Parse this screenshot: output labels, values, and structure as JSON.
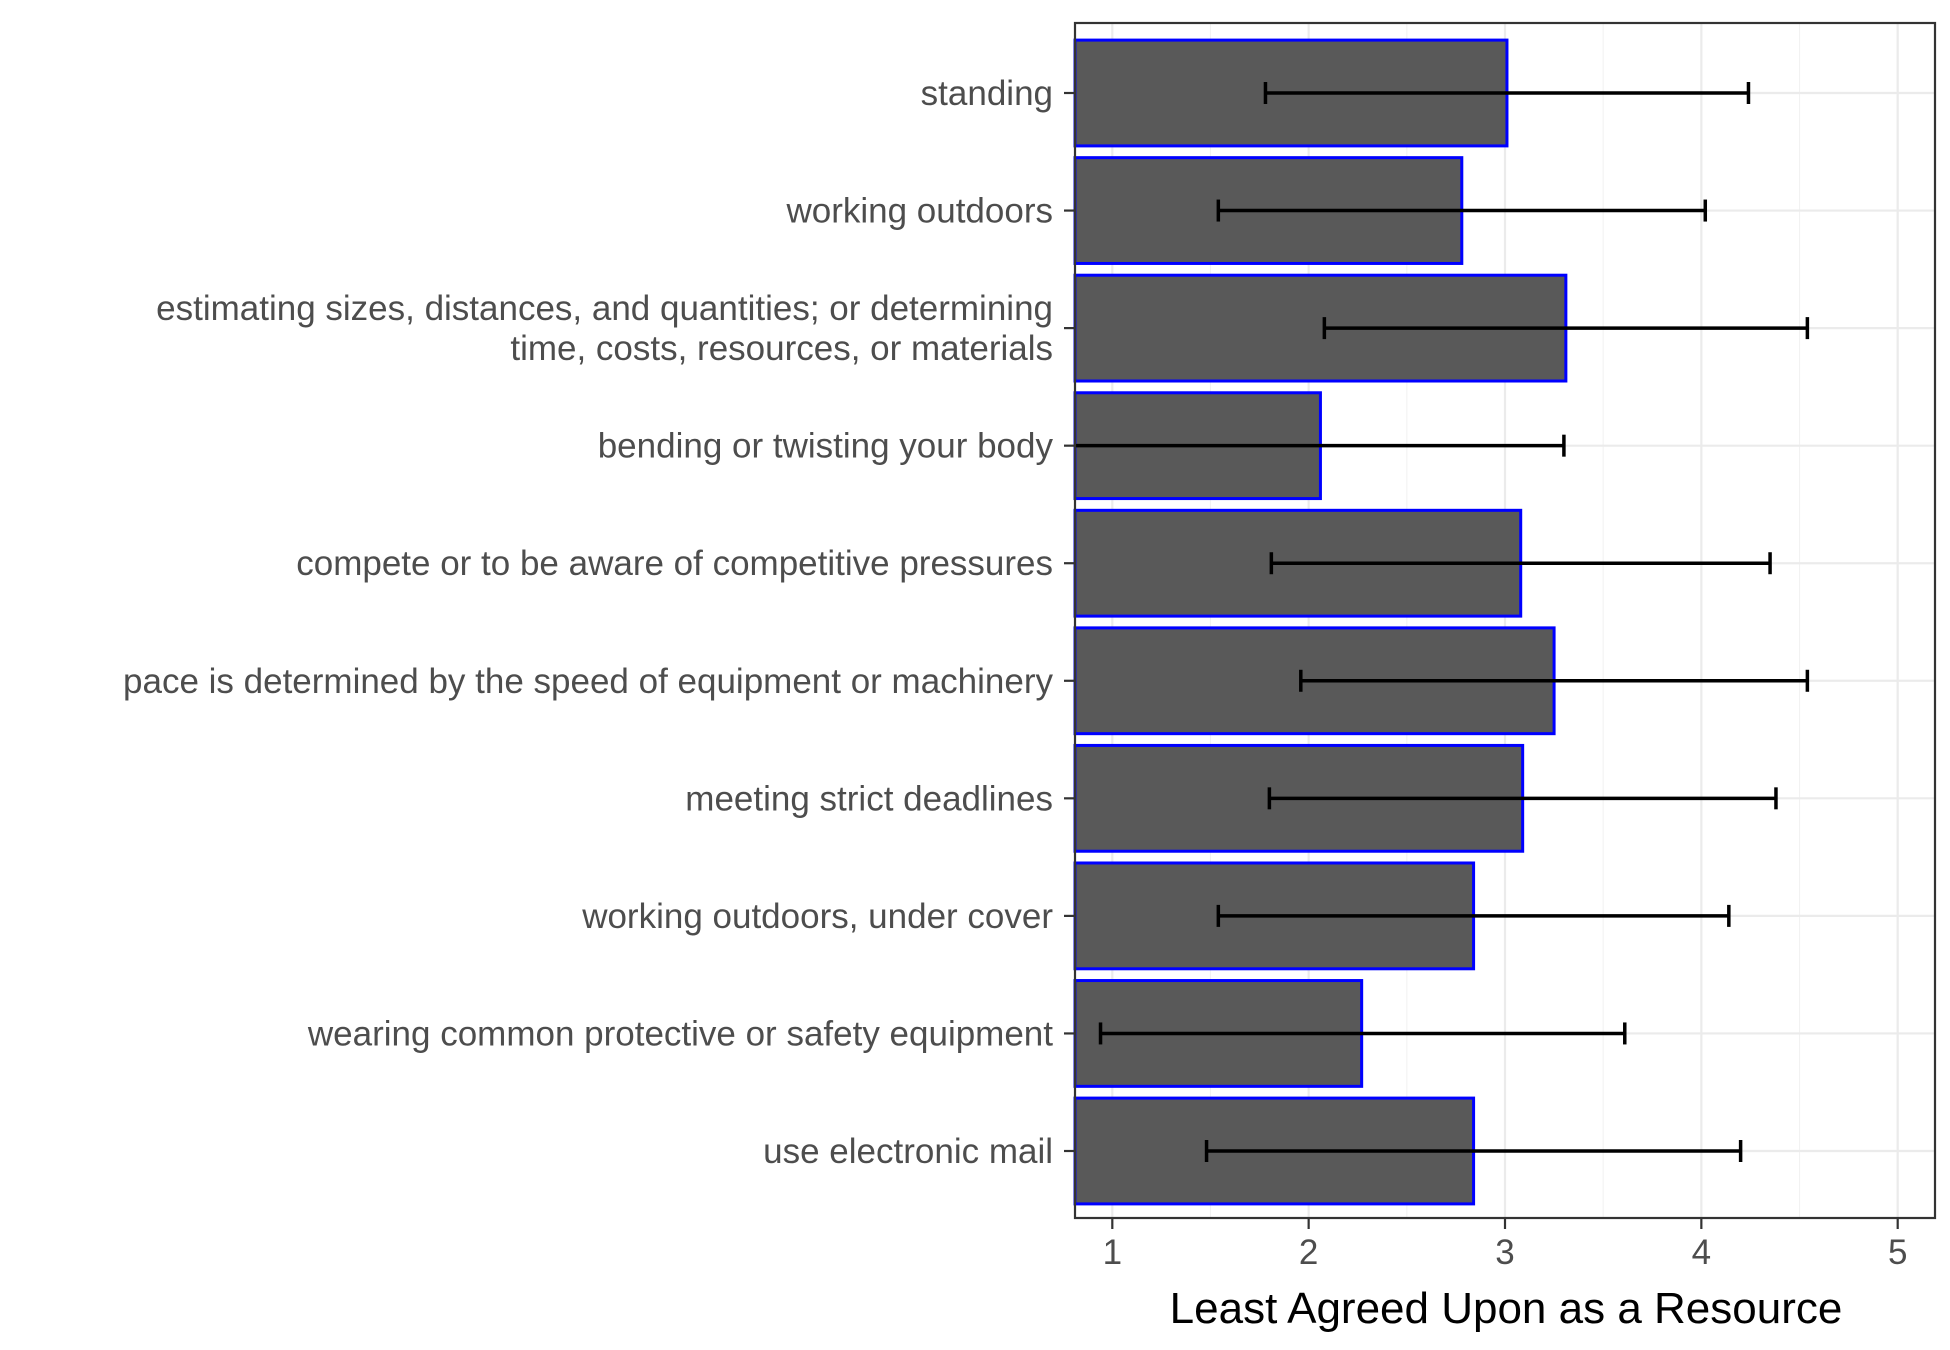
{
  "chart_data": {
    "type": "bar",
    "orientation": "horizontal",
    "title": "",
    "xlabel": "Least Agreed Upon as a Resource",
    "ylabel": "",
    "xlim": [
      0.81,
      5.19
    ],
    "x_ticks": [
      1,
      2,
      3,
      4,
      5
    ],
    "x_tick_labels": [
      "1",
      "2",
      "3",
      "4",
      "5"
    ],
    "grid": true,
    "legend": "none",
    "colors": {
      "bar_fill": "#595959",
      "bar_outline": "#0000ff",
      "error_bar": "#000000"
    },
    "categories": [
      [
        "standing"
      ],
      [
        "working outdoors"
      ],
      [
        "estimating sizes, distances, and quantities; or determining",
        "time, costs, resources, or materials"
      ],
      [
        "bending or twisting your body"
      ],
      [
        "compete or to be aware of competitive pressures"
      ],
      [
        "pace is determined by the speed of equipment or machinery"
      ],
      [
        "meeting strict deadlines"
      ],
      [
        "working outdoors, under cover"
      ],
      [
        "wearing common protective or safety equipment"
      ],
      [
        "use electronic mail"
      ]
    ],
    "values": [
      3.01,
      2.78,
      3.31,
      2.06,
      3.08,
      3.25,
      3.09,
      2.84,
      2.27,
      2.84
    ],
    "error_low": [
      1.78,
      1.54,
      2.08,
      0.81,
      1.81,
      1.96,
      1.8,
      1.54,
      0.94,
      1.48
    ],
    "error_high": [
      4.24,
      4.02,
      4.54,
      3.3,
      4.35,
      4.54,
      4.38,
      4.14,
      3.61,
      4.2
    ]
  }
}
